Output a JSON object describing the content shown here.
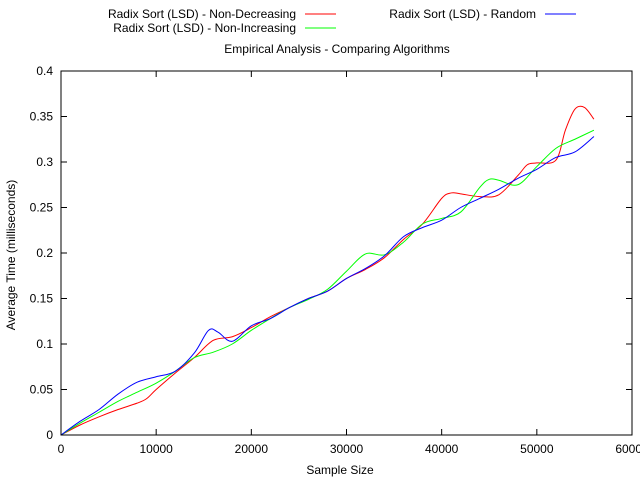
{
  "chart_data": {
    "type": "line",
    "title": "Empirical Analysis - Comparing Algorithms",
    "xlabel": "Sample Size",
    "ylabel": "Average Time (milliseconds)",
    "xlim": [
      0,
      60000
    ],
    "ylim": [
      0,
      0.4
    ],
    "xticks": [
      0,
      10000,
      20000,
      30000,
      40000,
      50000,
      60000
    ],
    "yticks": [
      0,
      0.05,
      0.1,
      0.15,
      0.2,
      0.25,
      0.3,
      0.35,
      0.4
    ],
    "grid": false,
    "legend_position": "top",
    "series": [
      {
        "name": "Radix Sort (LSD) - Non-Decreasing",
        "color": "#ff0000",
        "x": [
          0,
          2000,
          4000,
          6000,
          8000,
          9000,
          10000,
          12000,
          14000,
          16000,
          18000,
          20000,
          22000,
          24000,
          26000,
          28000,
          30000,
          32000,
          34000,
          36000,
          38000,
          40000,
          41000,
          42000,
          44000,
          46000,
          48000,
          49000,
          50000,
          52000,
          53000,
          54000,
          55000,
          56000
        ],
        "y": [
          0,
          0.011,
          0.02,
          0.028,
          0.035,
          0.04,
          0.05,
          0.068,
          0.085,
          0.104,
          0.108,
          0.118,
          0.13,
          0.14,
          0.15,
          0.158,
          0.172,
          0.182,
          0.195,
          0.215,
          0.232,
          0.26,
          0.266,
          0.265,
          0.262,
          0.264,
          0.285,
          0.297,
          0.299,
          0.302,
          0.335,
          0.358,
          0.36,
          0.347
        ]
      },
      {
        "name": "Radix Sort (LSD) - Non-Increasing",
        "color": "#00ff00",
        "x": [
          0,
          2000,
          4000,
          6000,
          8000,
          10000,
          12000,
          14000,
          16000,
          18000,
          20000,
          22000,
          24000,
          26000,
          28000,
          30000,
          32000,
          34000,
          36000,
          38000,
          40000,
          42000,
          44000,
          45000,
          46000,
          48000,
          50000,
          52000,
          54000,
          56000
        ],
        "y": [
          0,
          0.013,
          0.025,
          0.037,
          0.047,
          0.057,
          0.07,
          0.085,
          0.091,
          0.1,
          0.115,
          0.128,
          0.14,
          0.149,
          0.16,
          0.18,
          0.199,
          0.198,
          0.212,
          0.232,
          0.238,
          0.245,
          0.272,
          0.281,
          0.28,
          0.275,
          0.295,
          0.315,
          0.325,
          0.335
        ]
      },
      {
        "name": "Radix Sort (LSD) - Random",
        "color": "#0000ff",
        "x": [
          0,
          2000,
          4000,
          6000,
          8000,
          10000,
          12000,
          14000,
          15500,
          16500,
          18000,
          20000,
          22000,
          24000,
          26000,
          28000,
          30000,
          32000,
          34000,
          36000,
          38000,
          40000,
          42000,
          44000,
          46000,
          48000,
          50000,
          52000,
          54000,
          56000
        ],
        "y": [
          0,
          0.015,
          0.028,
          0.045,
          0.058,
          0.064,
          0.07,
          0.09,
          0.115,
          0.113,
          0.103,
          0.12,
          0.128,
          0.14,
          0.15,
          0.158,
          0.172,
          0.183,
          0.197,
          0.218,
          0.228,
          0.236,
          0.25,
          0.26,
          0.27,
          0.282,
          0.292,
          0.305,
          0.311,
          0.328
        ]
      }
    ]
  }
}
